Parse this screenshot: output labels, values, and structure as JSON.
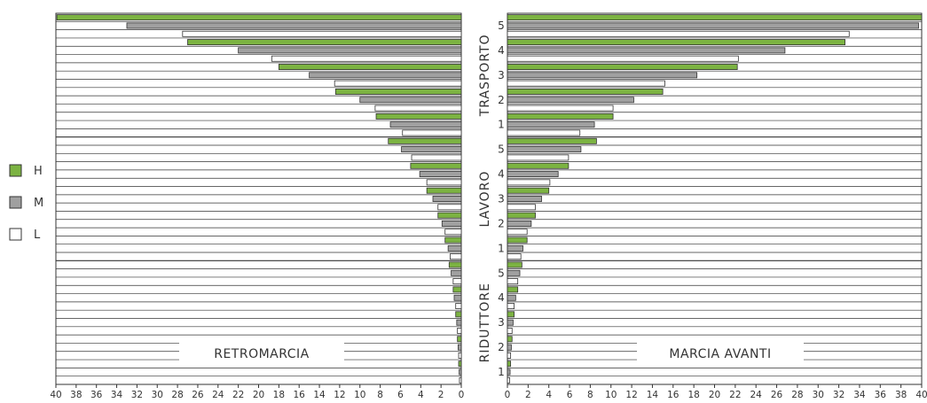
{
  "colors": {
    "H": "#7cb342",
    "M": "#a0a0a0",
    "L": "#ffffff",
    "grid": "#333333",
    "edge": "#333333"
  },
  "legend": [
    {
      "key": "H",
      "label": "H"
    },
    {
      "key": "M",
      "label": "M"
    },
    {
      "key": "L",
      "label": "L"
    }
  ],
  "chart_data": {
    "type": "bar",
    "orientation": "horizontal",
    "unit": "",
    "xlim": [
      0,
      40
    ],
    "x_ticks": [
      "0",
      "2",
      "4",
      "6",
      "8",
      "10",
      "12",
      "14",
      "16",
      "18",
      "20",
      "22",
      "24",
      "26",
      "28",
      "30",
      "32",
      "34",
      "36",
      "38",
      "40"
    ],
    "groups": [
      {
        "label": "TRASPORTO",
        "gear_labels": [
          "5",
          "4",
          "3",
          "2",
          "1"
        ]
      },
      {
        "label": "LAVORO",
        "gear_labels": [
          "5",
          "4",
          "3",
          "2",
          "1"
        ]
      },
      {
        "label": "RIDUTTORE",
        "gear_labels": [
          "5",
          "4",
          "3",
          "2",
          "1"
        ]
      }
    ],
    "range_order_per_gear": [
      "H",
      "M",
      "L"
    ],
    "panels": [
      {
        "title": "RETROMARCIA",
        "direction": "reverse",
        "speeds": [
          [
            39.9,
            33.0,
            27.5
          ],
          [
            27.0,
            22.0,
            18.7
          ],
          [
            18.0,
            15.0,
            12.5
          ],
          [
            12.4,
            10.0,
            8.5
          ],
          [
            8.4,
            7.0,
            5.8
          ],
          [
            7.2,
            5.9,
            4.9
          ],
          [
            5.0,
            4.1,
            3.4
          ],
          [
            3.4,
            2.8,
            2.3
          ],
          [
            2.3,
            1.9,
            1.6
          ],
          [
            1.6,
            1.3,
            1.1
          ],
          [
            1.2,
            1.0,
            0.8
          ],
          [
            0.8,
            0.7,
            0.55
          ],
          [
            0.55,
            0.45,
            0.38
          ],
          [
            0.38,
            0.31,
            0.26
          ],
          [
            0.26,
            0.21,
            0.18
          ]
        ]
      },
      {
        "title": "MARCIA AVANTI",
        "direction": "forward",
        "speeds": [
          [
            40.0,
            39.7,
            33.0
          ],
          [
            32.6,
            26.8,
            22.3
          ],
          [
            22.2,
            18.3,
            15.2
          ],
          [
            15.0,
            12.2,
            10.2
          ],
          [
            10.2,
            8.4,
            7.0
          ],
          [
            8.6,
            7.1,
            5.9
          ],
          [
            5.9,
            4.9,
            4.1
          ],
          [
            4.0,
            3.3,
            2.7
          ],
          [
            2.7,
            2.3,
            1.9
          ],
          [
            1.9,
            1.5,
            1.3
          ],
          [
            1.4,
            1.2,
            1.0
          ],
          [
            1.0,
            0.8,
            0.65
          ],
          [
            0.65,
            0.55,
            0.45
          ],
          [
            0.45,
            0.38,
            0.31
          ],
          [
            0.31,
            0.26,
            0.22
          ]
        ]
      }
    ]
  }
}
